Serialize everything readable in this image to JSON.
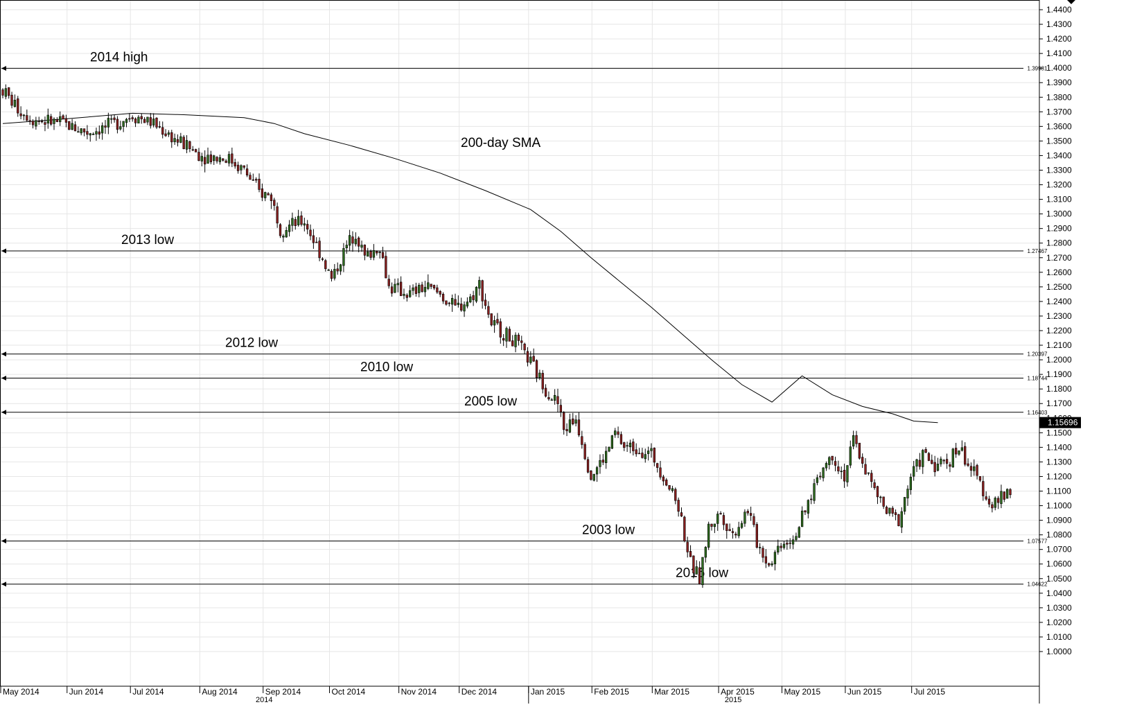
{
  "chart_data": {
    "type": "candlestick",
    "title": "",
    "xlabel": "",
    "ylabel": "",
    "ylim": [
      1.0,
      1.445
    ],
    "y_ticks": [
      1.0,
      1.01,
      1.02,
      1.03,
      1.04,
      1.05,
      1.06,
      1.07,
      1.08,
      1.09,
      1.1,
      1.11,
      1.12,
      1.13,
      1.14,
      1.15,
      1.16,
      1.17,
      1.18,
      1.19,
      1.2,
      1.21,
      1.22,
      1.23,
      1.24,
      1.25,
      1.26,
      1.27,
      1.28,
      1.29,
      1.3,
      1.31,
      1.32,
      1.33,
      1.34,
      1.35,
      1.36,
      1.37,
      1.38,
      1.39,
      1.4,
      1.41,
      1.42,
      1.43,
      1.44
    ],
    "grid": true,
    "months": [
      {
        "label": "May 2014",
        "idx": 0
      },
      {
        "label": "Jun 2014",
        "idx": 22
      },
      {
        "label": "Jul 2014",
        "idx": 43
      },
      {
        "label": "Aug 2014",
        "idx": 66
      },
      {
        "label": "Sep 2014",
        "idx": 87
      },
      {
        "label": "Oct 2014",
        "idx": 109
      },
      {
        "label": "Nov 2014",
        "idx": 132
      },
      {
        "label": "Dec 2014",
        "idx": 152
      },
      {
        "label": "Jan 2015",
        "idx": 175
      },
      {
        "label": "Feb 2015",
        "idx": 196
      },
      {
        "label": "Mar 2015",
        "idx": 216
      },
      {
        "label": "Apr 2015",
        "idx": 238
      },
      {
        "label": "May 2015",
        "idx": 259
      },
      {
        "label": "Jun 2015",
        "idx": 280
      },
      {
        "label": "Jul 2015",
        "idx": 302
      }
    ],
    "years": [
      {
        "label": "2014",
        "start_idx": 0,
        "end_idx": 174
      },
      {
        "label": "2015",
        "start_idx": 175,
        "end_idx": 310
      }
    ],
    "levels": [
      {
        "name": "2014 high",
        "value": 1.39981,
        "price_label": "1.39981"
      },
      {
        "name": "2013 low",
        "value": 1.27467,
        "price_label": "1.27467"
      },
      {
        "name": "2012 low",
        "value": 1.20397,
        "price_label": "1.20397"
      },
      {
        "name": "2010 low",
        "value": 1.18744,
        "price_label": "1.18744"
      },
      {
        "name": "2005 low",
        "value": 1.16403,
        "price_label": "1.16403"
      },
      {
        "name": "2003 low",
        "value": 1.07577,
        "price_label": "1.07577"
      },
      {
        "name": "2015 low",
        "value": 1.04622,
        "price_label": "1.04622"
      }
    ],
    "last_price": {
      "value": 1.15696,
      "label": "1.15696"
    },
    "sma_label": "200-day SMA",
    "sma": [
      [
        0,
        1.362
      ],
      [
        20,
        1.365
      ],
      [
        43,
        1.369
      ],
      [
        60,
        1.368
      ],
      [
        80,
        1.366
      ],
      [
        90,
        1.362
      ],
      [
        100,
        1.355
      ],
      [
        115,
        1.347
      ],
      [
        130,
        1.338
      ],
      [
        145,
        1.328
      ],
      [
        160,
        1.316
      ],
      [
        175,
        1.303
      ],
      [
        185,
        1.288
      ],
      [
        195,
        1.27
      ],
      [
        205,
        1.253
      ],
      [
        215,
        1.236
      ],
      [
        225,
        1.218
      ],
      [
        235,
        1.2
      ],
      [
        245,
        1.183
      ],
      [
        255,
        1.171
      ],
      [
        265,
        1.189
      ],
      [
        275,
        1.176
      ],
      [
        285,
        1.168
      ],
      [
        295,
        1.163
      ],
      [
        302,
        1.158
      ],
      [
        310,
        1.15696
      ]
    ],
    "anchors": [
      [
        0,
        1.385
      ],
      [
        5,
        1.372
      ],
      [
        10,
        1.365
      ],
      [
        20,
        1.362
      ],
      [
        28,
        1.356
      ],
      [
        35,
        1.36
      ],
      [
        43,
        1.368
      ],
      [
        50,
        1.362
      ],
      [
        58,
        1.35
      ],
      [
        66,
        1.34
      ],
      [
        75,
        1.338
      ],
      [
        80,
        1.33
      ],
      [
        85,
        1.315
      ],
      [
        89,
        1.312
      ],
      [
        92,
        1.29
      ],
      [
        100,
        1.295
      ],
      [
        106,
        1.27
      ],
      [
        109,
        1.255
      ],
      [
        114,
        1.278
      ],
      [
        117,
        1.288
      ],
      [
        120,
        1.27
      ],
      [
        125,
        1.278
      ],
      [
        128,
        1.25
      ],
      [
        135,
        1.245
      ],
      [
        140,
        1.25
      ],
      [
        145,
        1.245
      ],
      [
        150,
        1.235
      ],
      [
        155,
        1.242
      ],
      [
        158,
        1.252
      ],
      [
        162,
        1.225
      ],
      [
        170,
        1.212
      ],
      [
        175,
        1.198
      ],
      [
        180,
        1.18
      ],
      [
        184,
        1.17
      ],
      [
        186,
        1.152
      ],
      [
        190,
        1.16
      ],
      [
        192,
        1.145
      ],
      [
        195,
        1.12
      ],
      [
        200,
        1.135
      ],
      [
        203,
        1.15
      ],
      [
        206,
        1.14
      ],
      [
        210,
        1.14
      ],
      [
        215,
        1.135
      ],
      [
        218,
        1.125
      ],
      [
        224,
        1.1
      ],
      [
        228,
        1.06
      ],
      [
        231,
        1.05
      ],
      [
        234,
        1.085
      ],
      [
        238,
        1.095
      ],
      [
        242,
        1.08
      ],
      [
        247,
        1.098
      ],
      [
        250,
        1.075
      ],
      [
        254,
        1.06
      ],
      [
        258,
        1.075
      ],
      [
        262,
        1.078
      ],
      [
        266,
        1.095
      ],
      [
        270,
        1.12
      ],
      [
        275,
        1.135
      ],
      [
        279,
        1.12
      ],
      [
        282,
        1.145
      ],
      [
        285,
        1.13
      ],
      [
        289,
        1.11
      ],
      [
        293,
        1.095
      ],
      [
        297,
        1.09
      ],
      [
        301,
        1.12
      ],
      [
        305,
        1.135
      ],
      [
        309,
        1.128
      ],
      [
        313,
        1.13
      ],
      [
        317,
        1.14
      ],
      [
        321,
        1.125
      ],
      [
        324,
        1.115
      ],
      [
        328,
        1.1
      ],
      [
        331,
        1.105
      ],
      [
        334,
        1.112
      ]
    ],
    "candle_count": 335
  }
}
